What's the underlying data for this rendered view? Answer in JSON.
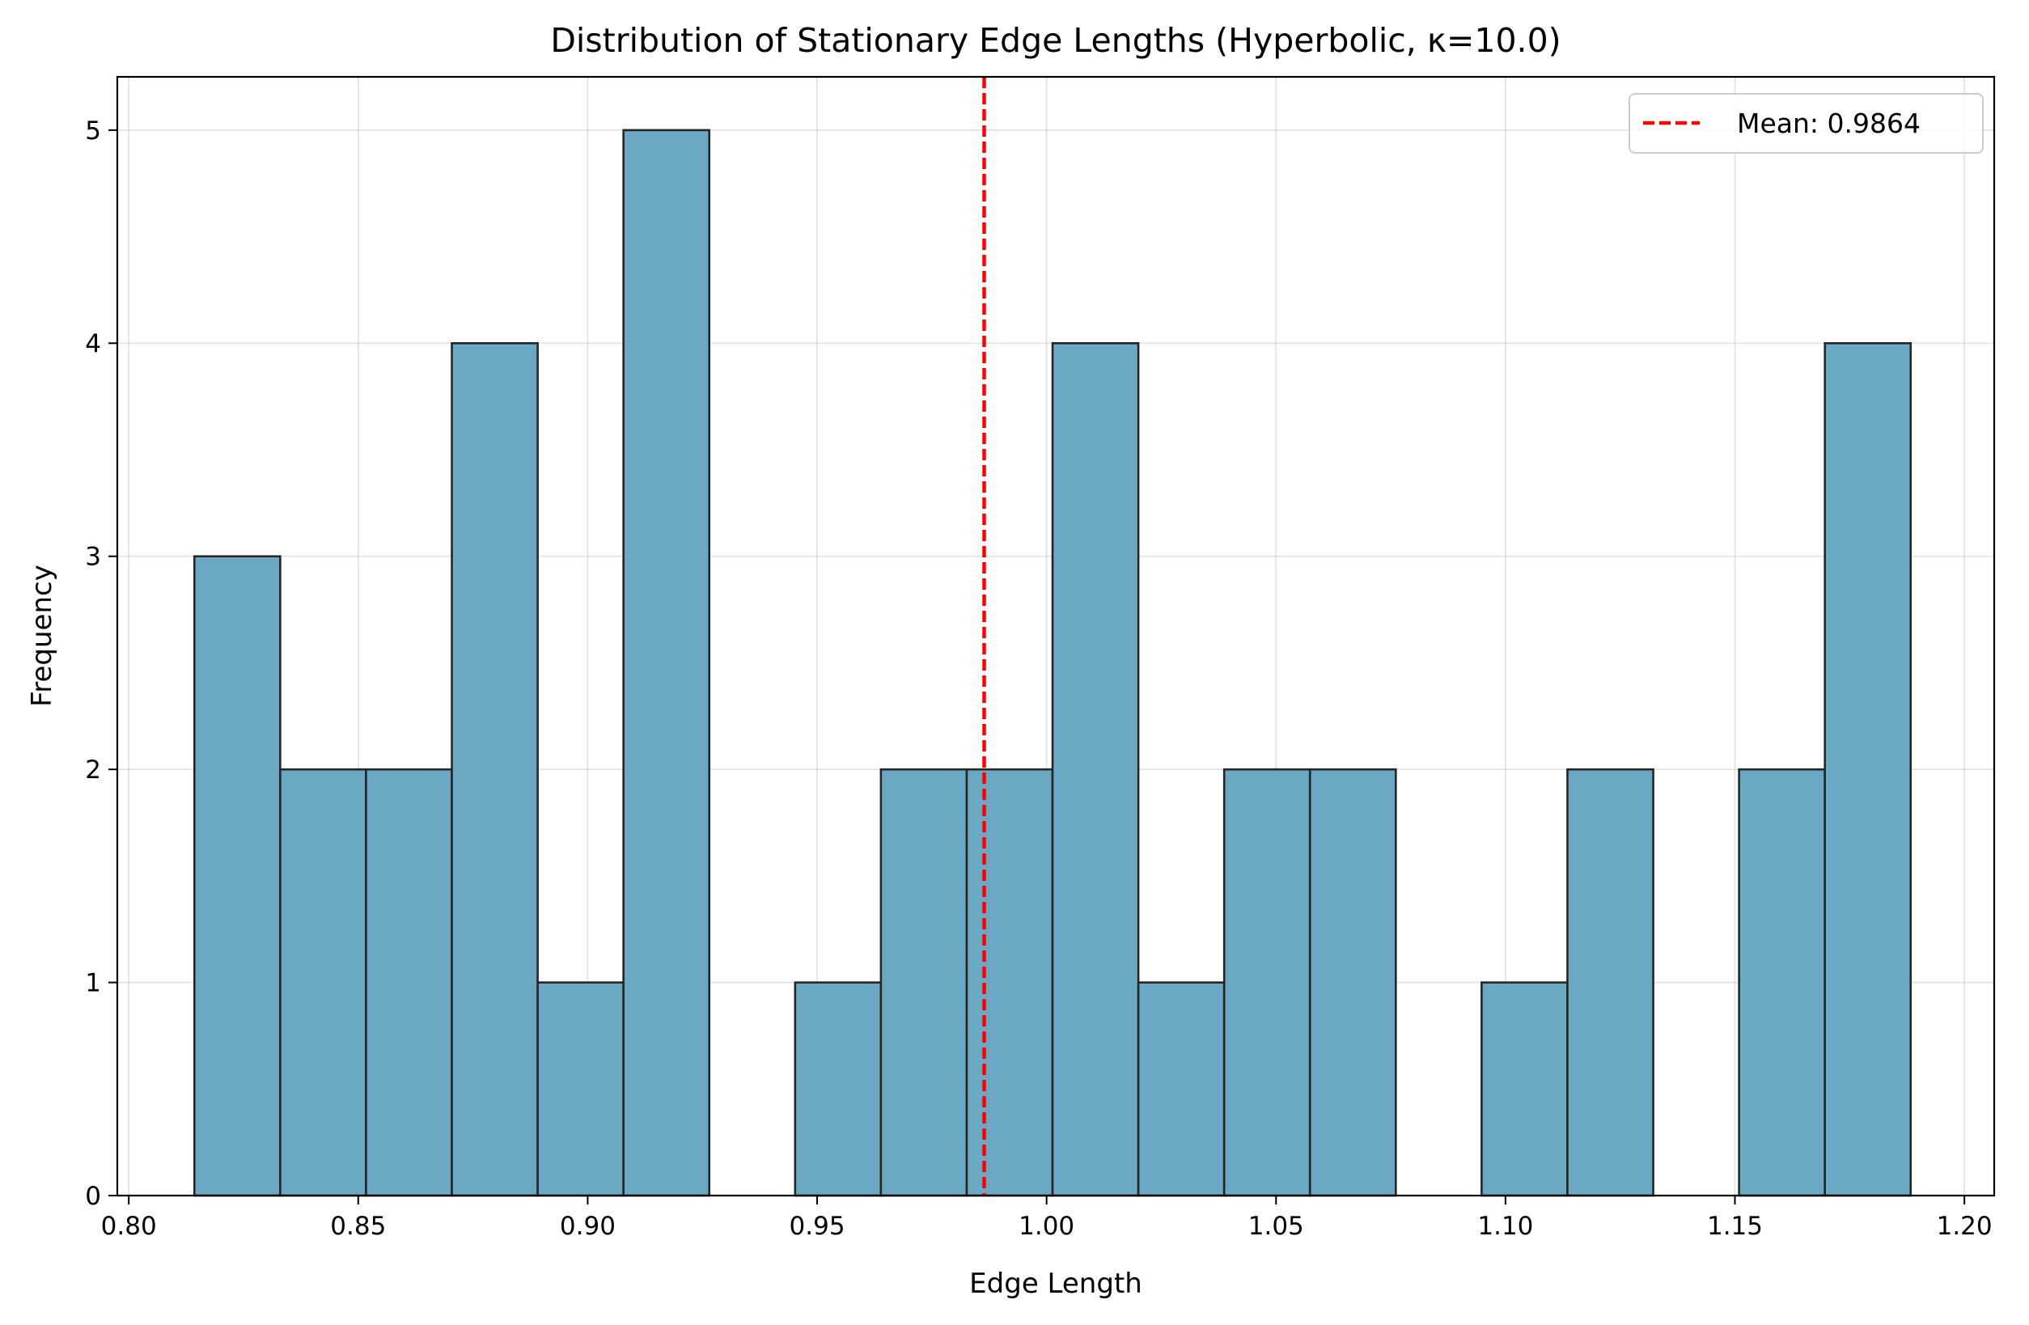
{
  "chart_data": {
    "type": "bar",
    "title": "Distribution of Stationary Edge Lengths (Hyperbolic, κ=10.0)",
    "xlabel": "Edge Length",
    "ylabel": "Frequency",
    "xlim": [
      0.7975,
      1.2065
    ],
    "ylim": [
      0,
      5.25
    ],
    "x_ticks": [
      "0.80",
      "0.85",
      "0.90",
      "0.95",
      "1.00",
      "1.05",
      "1.10",
      "1.15",
      "1.20"
    ],
    "y_ticks": [
      "0",
      "1",
      "2",
      "3",
      "4",
      "5"
    ],
    "grid": true,
    "legend_position": "top-right",
    "bar_color": "#6aa8c4",
    "edge_color": "#262626",
    "bins": [
      {
        "start": 0.8143,
        "end": 0.833,
        "count": 3
      },
      {
        "start": 0.833,
        "end": 0.8517,
        "count": 2
      },
      {
        "start": 0.8517,
        "end": 0.8704,
        "count": 2
      },
      {
        "start": 0.8704,
        "end": 0.8891,
        "count": 4
      },
      {
        "start": 0.8891,
        "end": 0.9078,
        "count": 1
      },
      {
        "start": 0.9078,
        "end": 0.9265,
        "count": 5
      },
      {
        "start": 0.9265,
        "end": 0.9452,
        "count": 0
      },
      {
        "start": 0.9452,
        "end": 0.9639,
        "count": 1
      },
      {
        "start": 0.9639,
        "end": 0.9826,
        "count": 2
      },
      {
        "start": 0.9826,
        "end": 1.0013,
        "count": 2
      },
      {
        "start": 1.0013,
        "end": 1.02,
        "count": 4
      },
      {
        "start": 1.02,
        "end": 1.0387,
        "count": 1
      },
      {
        "start": 1.0387,
        "end": 1.0574,
        "count": 2
      },
      {
        "start": 1.0574,
        "end": 1.0761,
        "count": 2
      },
      {
        "start": 1.0761,
        "end": 1.0948,
        "count": 0
      },
      {
        "start": 1.0948,
        "end": 1.1135,
        "count": 1
      },
      {
        "start": 1.1135,
        "end": 1.1322,
        "count": 2
      },
      {
        "start": 1.1322,
        "end": 1.1509,
        "count": 0
      },
      {
        "start": 1.1509,
        "end": 1.1696,
        "count": 2
      },
      {
        "start": 1.1696,
        "end": 1.1883,
        "count": 4
      }
    ],
    "mean_line": {
      "value": 0.9864,
      "label": "Mean: 0.9864",
      "color": "#ff0000",
      "style": "dashed"
    }
  }
}
